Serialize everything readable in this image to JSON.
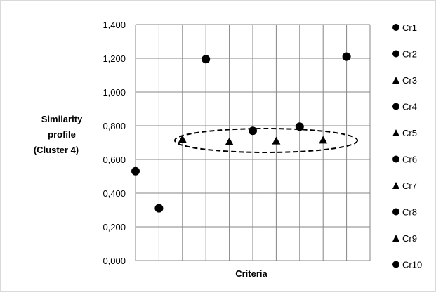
{
  "chart_data": {
    "type": "scatter",
    "title": "",
    "xlabel": "Criteria",
    "ylabel_lines": [
      "Similarity",
      "profile",
      "(Cluster 4)"
    ],
    "ylim": [
      0,
      1.4
    ],
    "yticks": [
      "1,400",
      "1,200",
      "1,000",
      "0,800",
      "0,600",
      "0,400",
      "0,200",
      "0,000"
    ],
    "grid": true,
    "legend_position": "right",
    "points": [
      {
        "name": "Cr1",
        "x": 1,
        "y": 0.53,
        "marker": "circle"
      },
      {
        "name": "Cr2",
        "x": 2,
        "y": 0.31,
        "marker": "circle"
      },
      {
        "name": "Cr3",
        "x": 3,
        "y": 0.72,
        "marker": "triangle"
      },
      {
        "name": "Cr4",
        "x": 4,
        "y": 1.195,
        "marker": "circle"
      },
      {
        "name": "Cr5",
        "x": 5,
        "y": 0.705,
        "marker": "triangle"
      },
      {
        "name": "Cr6",
        "x": 6,
        "y": 0.77,
        "marker": "circle"
      },
      {
        "name": "Cr7",
        "x": 7,
        "y": 0.71,
        "marker": "triangle"
      },
      {
        "name": "Cr8",
        "x": 8,
        "y": 0.795,
        "marker": "circle"
      },
      {
        "name": "Cr9",
        "x": 9,
        "y": 0.715,
        "marker": "triangle"
      },
      {
        "name": "Cr10",
        "x": 10,
        "y": 1.21,
        "marker": "circle"
      }
    ],
    "annotation": {
      "type": "dashed-ellipse",
      "encloses": [
        "Cr3",
        "Cr5",
        "Cr6",
        "Cr7",
        "Cr8",
        "Cr9"
      ]
    },
    "colors": {
      "marker": "#000000",
      "grid": "#868686",
      "frame": "#d9d9d9"
    }
  }
}
